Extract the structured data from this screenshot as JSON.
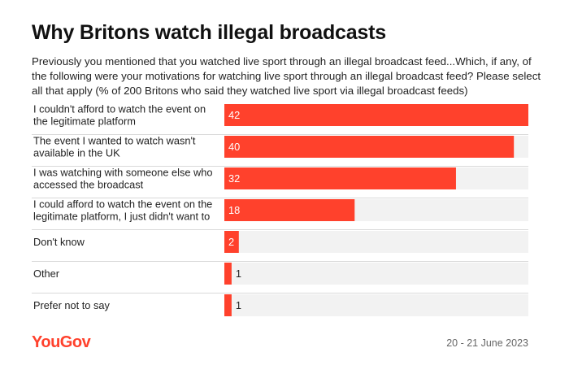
{
  "chart_data": {
    "type": "bar",
    "orientation": "horizontal",
    "title": "Why Britons watch illegal broadcasts",
    "subtitle": "Previously you mentioned that you watched live sport through an illegal broadcast feed...Which, if any, of the following were your motivations for watching live sport through an illegal broadcast feed? Please select all that apply (% of 200 Britons who said they watched live sport via illegal broadcast feeds)",
    "categories": [
      [
        "I couldn't afford to watch the event on",
        "the legitimate platform"
      ],
      [
        "The event I wanted to watch wasn't",
        "available in the UK"
      ],
      [
        "I was watching with someone else who",
        "accessed the broadcast"
      ],
      [
        "I could afford to watch the event on the",
        "legitimate platform, I just didn't want to"
      ],
      [
        "Don't know"
      ],
      [
        "Other"
      ],
      [
        "Prefer not to say"
      ]
    ],
    "values": [
      42,
      40,
      32,
      18,
      2,
      1,
      1
    ],
    "xlim": [
      0,
      42
    ],
    "xlabel": "",
    "ylabel": "",
    "grid": false,
    "colors": {
      "bar": "#ff412c",
      "track": "#f2f2f2",
      "divider": "#d9d9d9",
      "label_inside": "#ffffff",
      "label_outside": "#222222"
    }
  },
  "footer": {
    "logo": "YouGov",
    "date": "20 - 21 June 2023"
  }
}
